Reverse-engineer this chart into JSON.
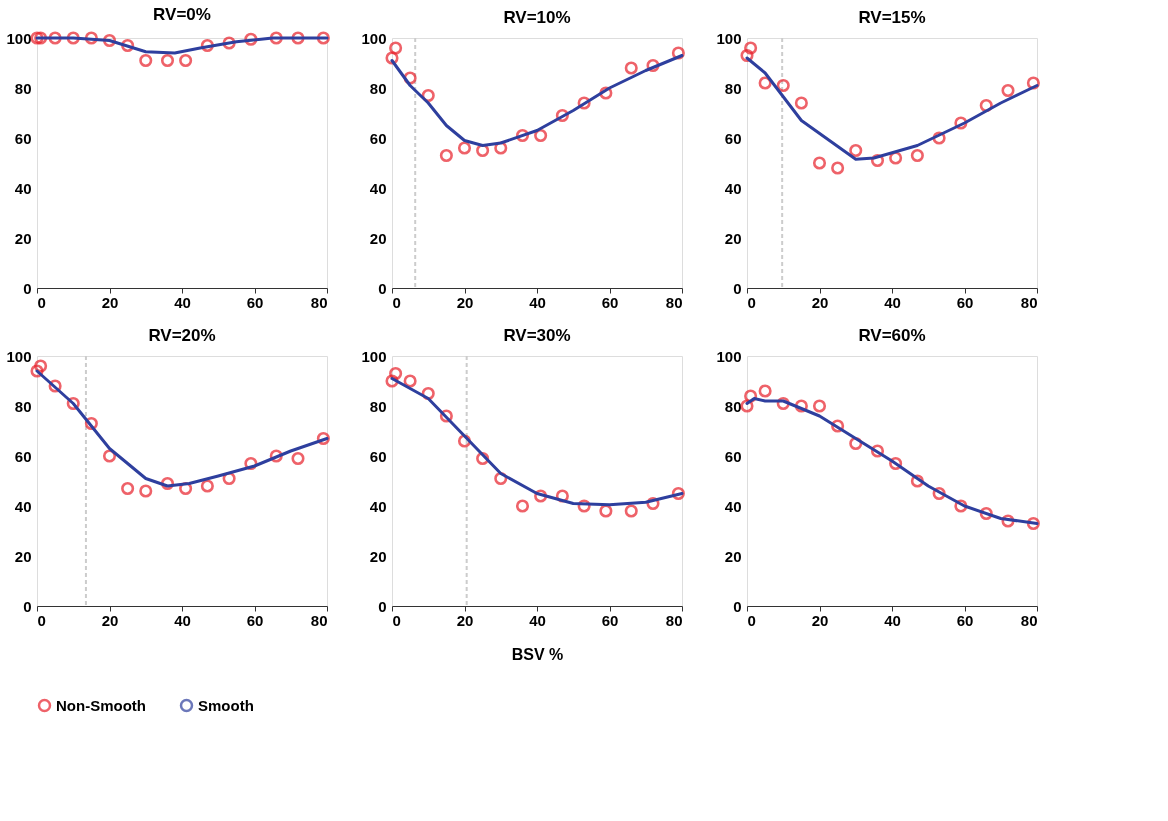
{
  "chart_data": [
    {
      "type": "line",
      "title": "RV=0%",
      "xlim": [
        0,
        80
      ],
      "ylim": [
        0,
        100
      ],
      "xticks": [
        0,
        20,
        40,
        60,
        80
      ],
      "yticks": [
        0,
        20,
        40,
        60,
        80,
        100
      ],
      "grid": false,
      "series": [
        {
          "type": "scatter",
          "marker": "circle",
          "color": "#e8202a",
          "x": [
            0,
            1,
            5,
            10,
            15,
            20,
            25,
            30,
            36,
            41,
            47,
            53,
            59,
            66,
            72,
            79
          ],
          "values": [
            100,
            100,
            100,
            100,
            100,
            99,
            97,
            91,
            91,
            91,
            97,
            98,
            99.5,
            100,
            100,
            100
          ]
        },
        {
          "type": "line",
          "line_style": "solid",
          "color": "#2e3f9e",
          "x": [
            0,
            10,
            20,
            30,
            38,
            45,
            55,
            65,
            80
          ],
          "values": [
            100,
            100,
            99,
            94.5,
            94,
            96,
            98.5,
            100,
            100
          ]
        }
      ]
    },
    {
      "type": "line",
      "title": "RV=10%",
      "xlim": [
        0,
        80
      ],
      "ylim": [
        0,
        100
      ],
      "xticks": [
        0,
        20,
        40,
        60,
        80
      ],
      "yticks": [
        0,
        20,
        40,
        60,
        80,
        100
      ],
      "grid": false,
      "ref_lines": [
        {
          "axis": "x",
          "value": 6.4,
          "color": "#cccccc",
          "line_style": "dashed"
        }
      ],
      "series": [
        {
          "type": "scatter",
          "marker": "circle",
          "color": "#e8202a",
          "x": [
            0,
            1,
            5,
            10,
            15,
            20,
            25,
            30,
            36,
            41,
            47,
            53,
            59,
            66,
            72,
            79
          ],
          "values": [
            92,
            96,
            84,
            77,
            53,
            56,
            55,
            56,
            61,
            61,
            69,
            74,
            78,
            88,
            89,
            94
          ]
        },
        {
          "type": "line",
          "line_style": "solid",
          "color": "#2e3f9e",
          "x": [
            0,
            5,
            10,
            15,
            20,
            25,
            30,
            40,
            50,
            60,
            70,
            80
          ],
          "values": [
            91,
            81,
            74,
            65,
            59,
            57,
            58,
            63,
            71,
            80,
            87,
            93
          ]
        }
      ]
    },
    {
      "type": "line",
      "title": "RV=15%",
      "xlim": [
        0,
        80
      ],
      "ylim": [
        0,
        100
      ],
      "xticks": [
        0,
        20,
        40,
        60,
        80
      ],
      "yticks": [
        0,
        20,
        40,
        60,
        80,
        100
      ],
      "grid": false,
      "ref_lines": [
        {
          "axis": "x",
          "value": 9.7,
          "color": "#cccccc",
          "line_style": "dashed"
        }
      ],
      "series": [
        {
          "type": "scatter",
          "marker": "circle",
          "color": "#e8202a",
          "x": [
            0,
            1,
            5,
            10,
            15,
            20,
            25,
            30,
            36,
            41,
            47,
            53,
            59,
            66,
            72,
            79
          ],
          "values": [
            93,
            96,
            82,
            81,
            74,
            50,
            48,
            55,
            51,
            52,
            53,
            60,
            66,
            73,
            79,
            82
          ]
        },
        {
          "type": "line",
          "line_style": "solid",
          "color": "#2e3f9e",
          "x": [
            0,
            5,
            15,
            30,
            35,
            47,
            60,
            70,
            80
          ],
          "values": [
            92,
            86,
            67,
            51.5,
            52,
            57,
            66,
            74,
            81
          ]
        }
      ]
    },
    {
      "type": "line",
      "title": "RV=20%",
      "xlim": [
        0,
        80
      ],
      "ylim": [
        0,
        100
      ],
      "xticks": [
        0,
        20,
        40,
        60,
        80
      ],
      "yticks": [
        0,
        20,
        40,
        60,
        80,
        100
      ],
      "grid": false,
      "legend": "bottom",
      "ref_lines": [
        {
          "axis": "x",
          "value": 13.5,
          "color": "#cccccc",
          "line_style": "dashed"
        }
      ],
      "series": [
        {
          "type": "scatter",
          "name": "Non-Smooth",
          "marker": "circle",
          "color": "#e8202a",
          "x": [
            0,
            1,
            5,
            10,
            15,
            20,
            25,
            30,
            36,
            41,
            47,
            53,
            59,
            66,
            72,
            79
          ],
          "values": [
            94,
            96,
            88,
            81,
            73,
            60,
            47,
            46,
            49,
            47,
            48,
            51,
            57,
            60,
            59,
            67
          ]
        },
        {
          "type": "line",
          "name": "Smooth",
          "line_style": "solid",
          "color": "#2e3f9e",
          "x": [
            0,
            10,
            15,
            20,
            30,
            36,
            42,
            50,
            60,
            70,
            80
          ],
          "values": [
            94,
            81,
            72,
            63,
            51,
            48,
            49,
            52,
            56,
            62,
            67
          ]
        }
      ]
    },
    {
      "type": "line",
      "title": "RV=30%",
      "xlabel": "BSV %",
      "xlim": [
        0,
        80
      ],
      "ylim": [
        0,
        100
      ],
      "xticks": [
        0,
        20,
        40,
        60,
        80
      ],
      "yticks": [
        0,
        20,
        40,
        60,
        80,
        100
      ],
      "grid": false,
      "ref_lines": [
        {
          "axis": "x",
          "value": 20.6,
          "color": "#cccccc",
          "line_style": "dashed"
        }
      ],
      "series": [
        {
          "type": "scatter",
          "marker": "circle",
          "color": "#e8202a",
          "x": [
            0,
            1,
            5,
            10,
            15,
            20,
            25,
            30,
            36,
            41,
            47,
            53,
            59,
            66,
            72,
            79
          ],
          "values": [
            90,
            93,
            90,
            85,
            76,
            66,
            59,
            51,
            40,
            44,
            44,
            40,
            38,
            38,
            41,
            45
          ]
        },
        {
          "type": "line",
          "line_style": "solid",
          "color": "#2e3f9e",
          "x": [
            0,
            10,
            20,
            30,
            40,
            50,
            60,
            70,
            80
          ],
          "values": [
            91,
            83,
            68,
            53,
            45,
            41,
            40.5,
            41.5,
            45
          ]
        }
      ]
    },
    {
      "type": "line",
      "title": "RV=60%",
      "xlim": [
        0,
        80
      ],
      "ylim": [
        0,
        100
      ],
      "xticks": [
        0,
        20,
        40,
        60,
        80
      ],
      "yticks": [
        0,
        20,
        40,
        60,
        80,
        100
      ],
      "grid": false,
      "series": [
        {
          "type": "scatter",
          "marker": "circle",
          "color": "#e8202a",
          "x": [
            0,
            1,
            5,
            10,
            15,
            20,
            25,
            30,
            36,
            41,
            47,
            53,
            59,
            66,
            72,
            79
          ],
          "values": [
            80,
            84,
            86,
            81,
            80,
            80,
            72,
            65,
            62,
            57,
            50,
            45,
            40,
            37,
            34,
            33
          ]
        },
        {
          "type": "line",
          "line_style": "solid",
          "color": "#2e3f9e",
          "x": [
            0,
            2,
            5,
            10,
            20,
            30,
            40,
            50,
            60,
            70,
            80
          ],
          "values": [
            81,
            83,
            82,
            82,
            76,
            67,
            58,
            48,
            40,
            35,
            33
          ]
        }
      ]
    }
  ]
}
